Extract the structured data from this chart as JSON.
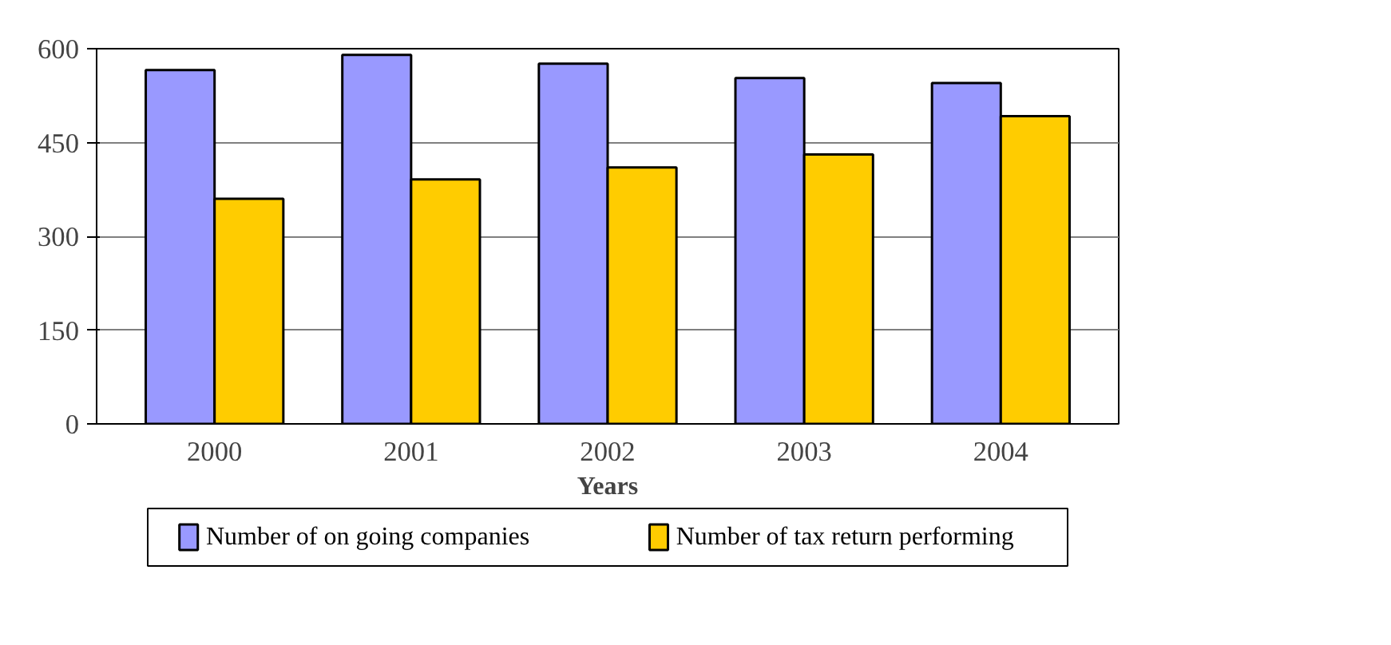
{
  "chart_data": {
    "type": "bar",
    "xlabel": "Years",
    "categories": [
      "2000",
      "2001",
      "2002",
      "2003",
      "2004"
    ],
    "series": [
      {
        "name": "Number of on going companies",
        "color": "#9999ff",
        "values": [
          566,
          590,
          576,
          553,
          545
        ]
      },
      {
        "name": "Number of tax return performing",
        "color": "#ffcc00",
        "values": [
          360,
          391,
          410,
          431,
          492
        ]
      }
    ],
    "ylim": [
      0,
      600
    ],
    "yticks": [
      0,
      150,
      300,
      450,
      600
    ],
    "grid": "y",
    "legend": "bottom"
  }
}
